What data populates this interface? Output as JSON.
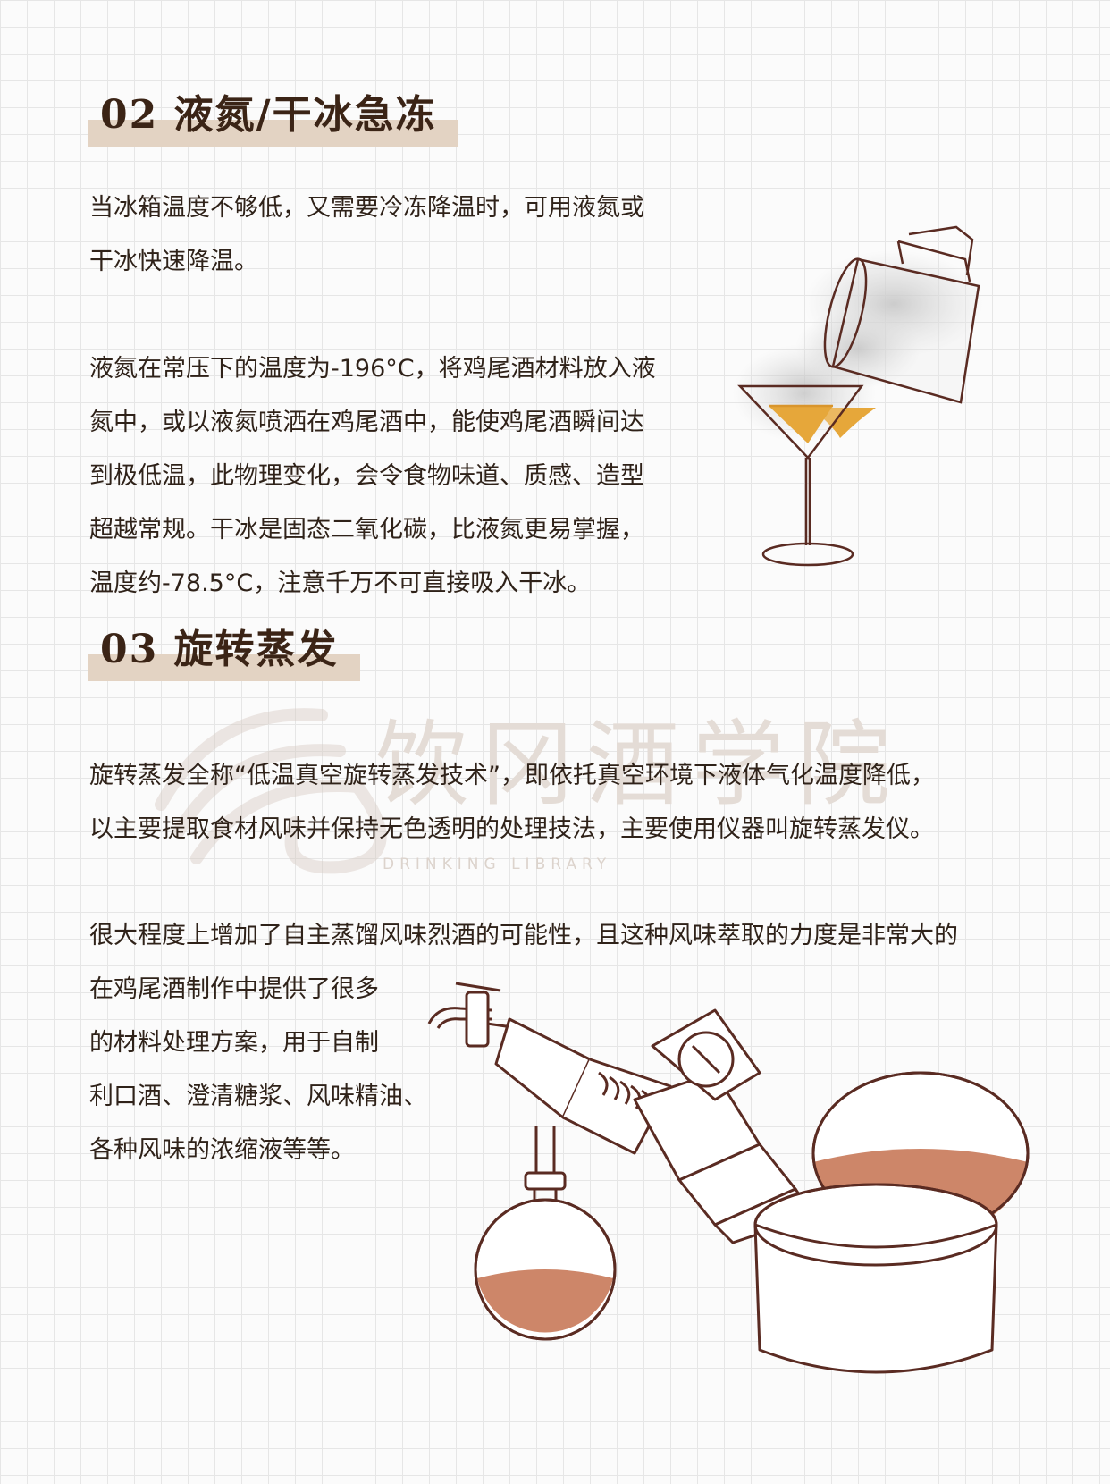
{
  "section2": {
    "title": "02 液氮/干冰急冻",
    "para1": [
      "当冰箱温度不够低，又需要冷冻降温时，可用液氮或",
      "干冰快速降温。"
    ],
    "para2": [
      "液氮在常压下的温度为-196°C，将鸡尾酒材料放入液",
      "氮中，或以液氮喷洒在鸡尾酒中，能使鸡尾酒瞬间达",
      "到极低温，此物理变化，会令食物味道、质感、造型",
      "超越常规。干冰是固态二氧化碳，比液氮更易掌握，",
      "温度约-78.5°C，注意千万不可直接吸入干冰。"
    ]
  },
  "section3": {
    "title": "03 旋转蒸发",
    "para1": [
      "旋转蒸发全称“低温真空旋转蒸发技术”，即依托真空环境下液体气化温度降低，",
      "以主要提取食材风味并保持无色透明的处理技法，主要使用仪器叫旋转蒸发仪。"
    ],
    "para2": [
      "很大程度上增加了自主蒸馏风味烈酒的可能性，且这种风味萃取的力度是非常大的",
      "在鸡尾酒制作中提供了很多",
      "的材料处理方案，用于自制",
      "利口酒、澄清糖浆、风味精油、",
      "各种风味的浓缩液等等。"
    ]
  },
  "watermark": {
    "name": "饮冈酒学院",
    "sub": "DRINKING LIBRARY"
  },
  "colors": {
    "heading_bar": "#e3d3c3",
    "heading_text": "#3b2416",
    "liquid_amber": "#e6a73a",
    "liquid_copper": "#c4714f",
    "outline": "#5a2b22"
  }
}
